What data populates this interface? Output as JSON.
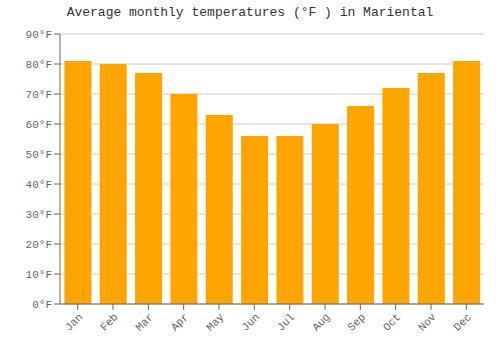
{
  "chart_data": {
    "type": "bar",
    "title": "Average monthly temperatures (°F ) in Mariental",
    "categories": [
      "Jan",
      "Feb",
      "Mar",
      "Apr",
      "May",
      "Jun",
      "Jul",
      "Aug",
      "Sep",
      "Oct",
      "Nov",
      "Dec"
    ],
    "values": [
      81,
      80,
      77,
      70,
      63,
      56,
      56,
      60,
      66,
      72,
      77,
      81
    ],
    "color": "#FFA500",
    "ylim": [
      0,
      90
    ],
    "yticks": [
      {
        "value": 0,
        "label": "0°F"
      },
      {
        "value": 10,
        "label": "10°F"
      },
      {
        "value": 20,
        "label": "20°F"
      },
      {
        "value": 30,
        "label": "30°F"
      },
      {
        "value": 40,
        "label": "40°F"
      },
      {
        "value": 50,
        "label": "50°F"
      },
      {
        "value": 60,
        "label": "60°F"
      },
      {
        "value": 70,
        "label": "70°F"
      },
      {
        "value": 80,
        "label": "80°F"
      },
      {
        "value": 90,
        "label": "90°F"
      }
    ],
    "grid": true
  }
}
